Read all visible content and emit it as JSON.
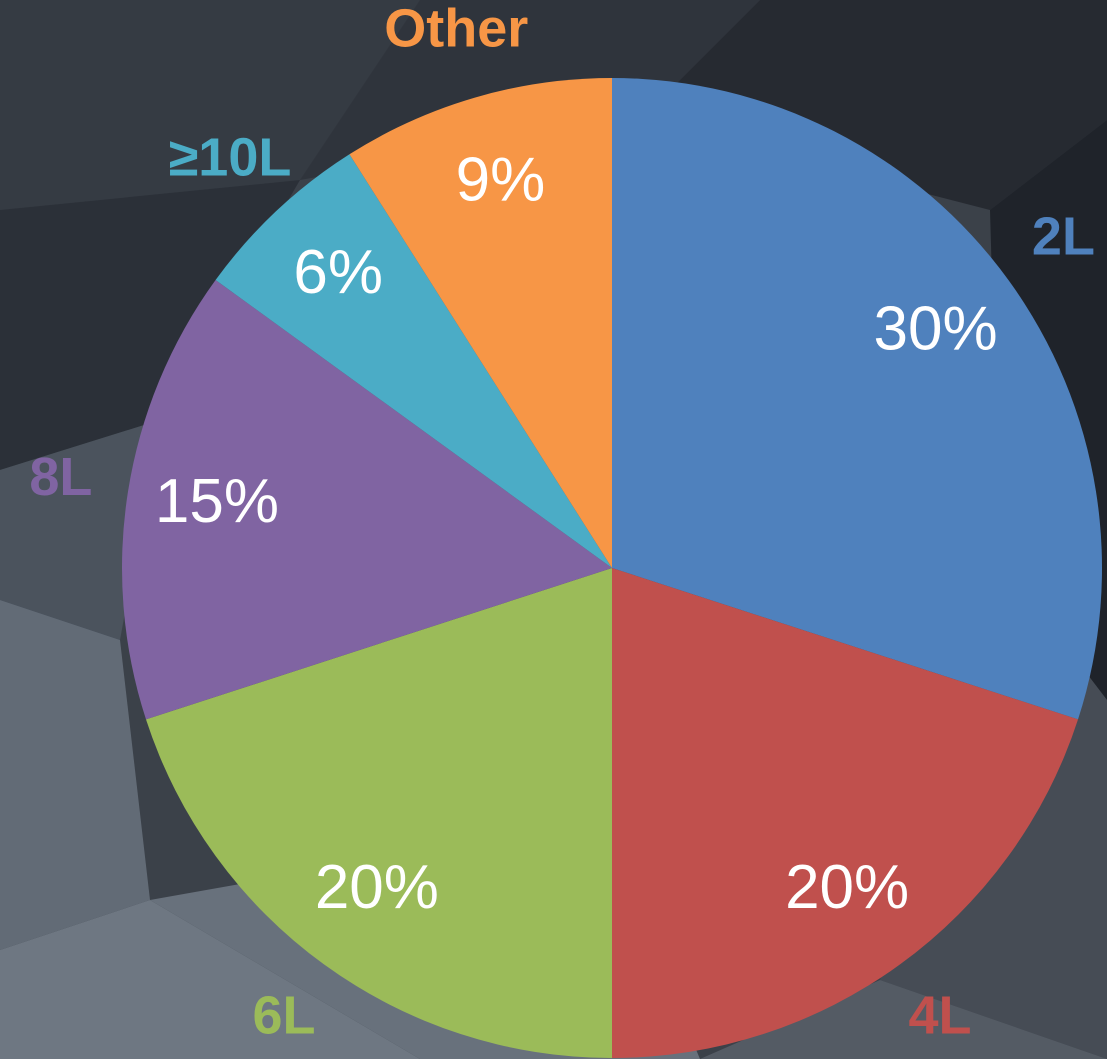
{
  "chart_data": {
    "type": "pie",
    "categories": [
      "2L",
      "4L",
      "6L",
      "8L",
      "≥10L",
      "Other"
    ],
    "values": [
      30,
      20,
      20,
      15,
      6,
      9
    ],
    "value_labels": [
      "30%",
      "20%",
      "20%",
      "15%",
      "6%",
      "9%"
    ],
    "colors": [
      "#4f81bd",
      "#c0504d",
      "#9bbb59",
      "#8064a2",
      "#4bacc6",
      "#f79646"
    ]
  }
}
